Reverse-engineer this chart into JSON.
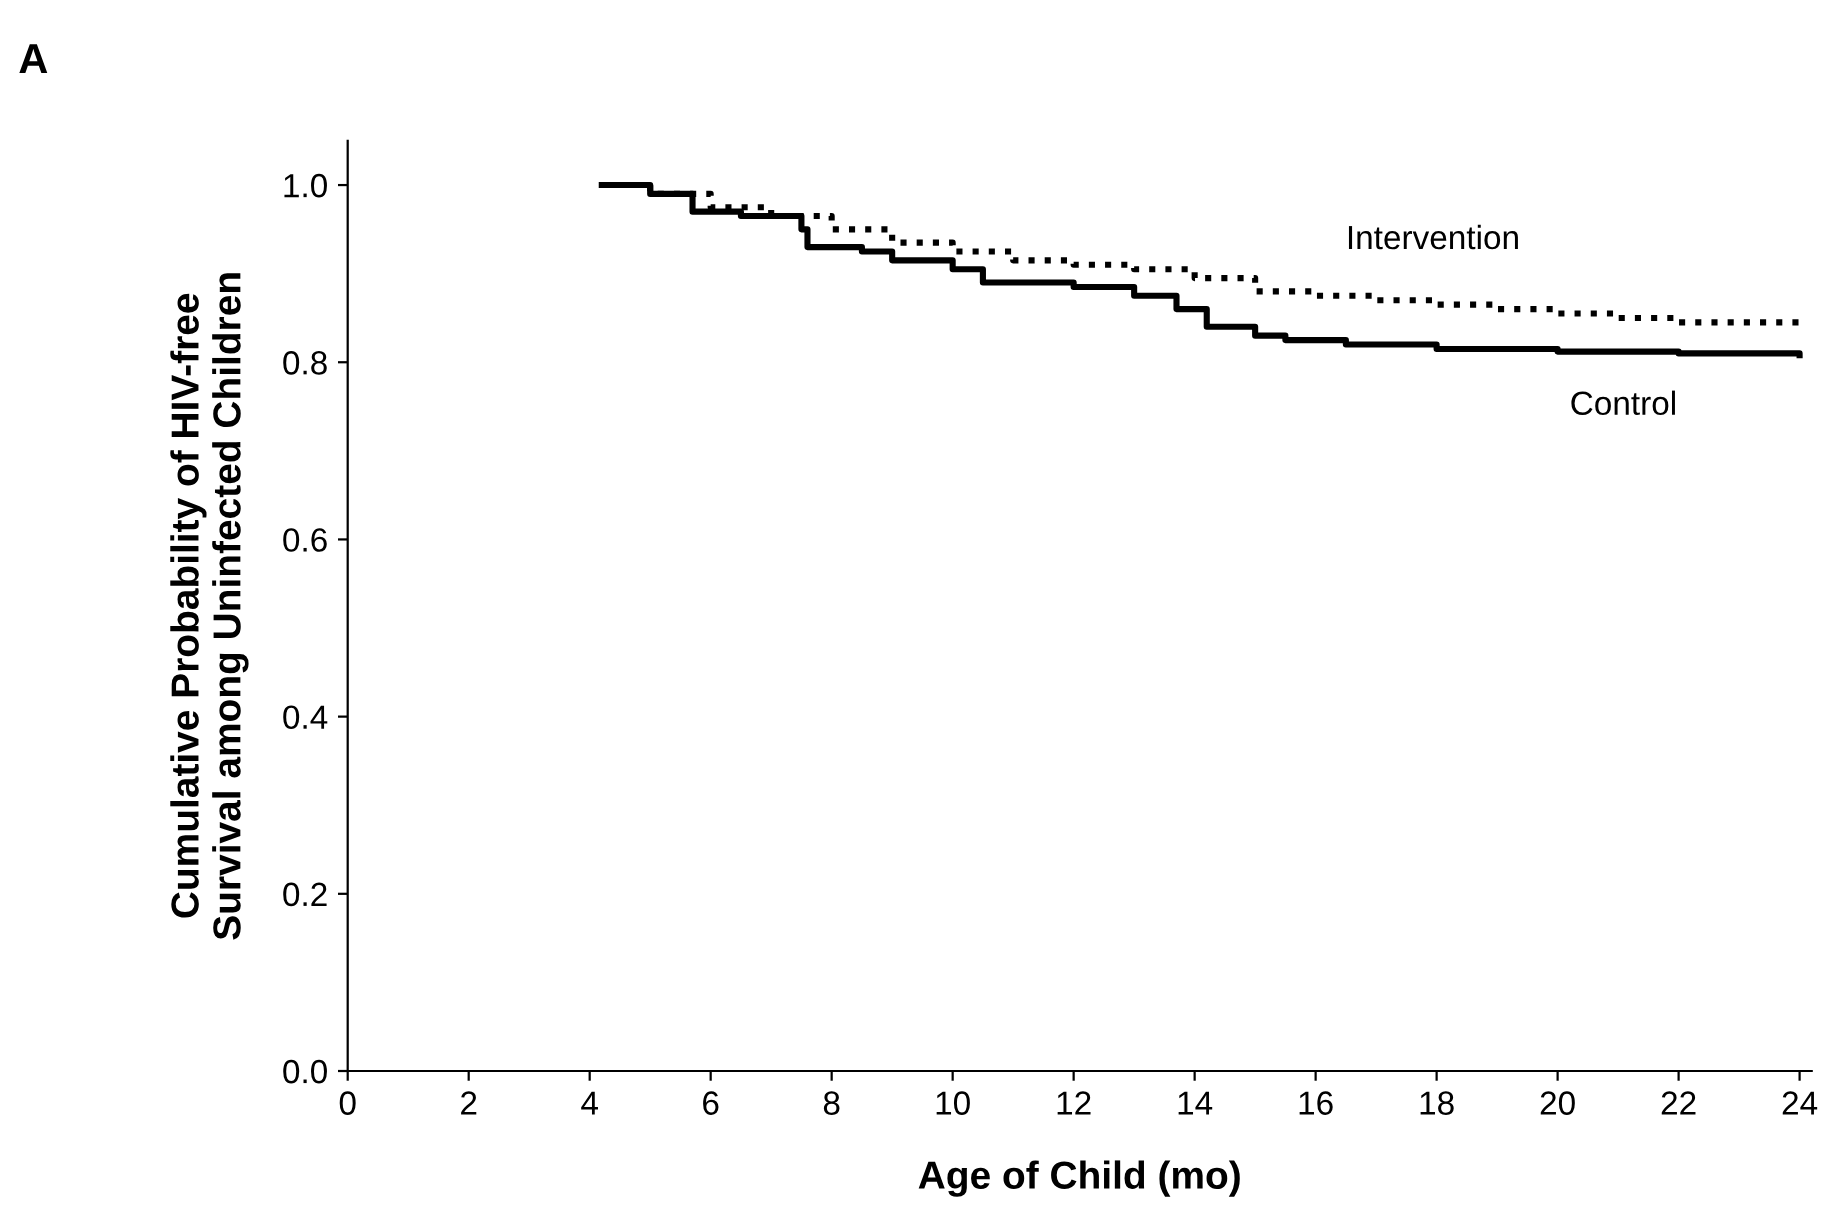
{
  "chart_data": {
    "type": "step",
    "xlabel": "Age of Child (mo)",
    "ylabel": "Cumulative Probability of HIV-free\nSurvival among Uninfected Children",
    "annotations": [
      "A"
    ],
    "xlim": [
      0,
      24.2
    ],
    "ylim": [
      0,
      1.05
    ],
    "xticks": [
      0,
      2,
      4,
      6,
      8,
      10,
      12,
      14,
      16,
      18,
      20,
      22,
      24
    ],
    "yticks": [
      {
        "value": 0,
        "label": "0.0"
      },
      0.2,
      0.4,
      0.6,
      0.8,
      {
        "value": 1,
        "label": "1.0"
      }
    ],
    "grid": false,
    "legend": false,
    "series": [
      {
        "name": "Intervention",
        "color": "#000000",
        "line_style": "dotted",
        "x": [
          4.2,
          5,
          6,
          7,
          8,
          9,
          10,
          11,
          12,
          13,
          14,
          15,
          16,
          17,
          18,
          19,
          20,
          21,
          22,
          24
        ],
        "values": [
          1.0,
          0.99,
          0.975,
          0.965,
          0.95,
          0.935,
          0.925,
          0.915,
          0.91,
          0.905,
          0.895,
          0.88,
          0.875,
          0.87,
          0.865,
          0.86,
          0.855,
          0.85,
          0.845,
          0.84
        ]
      },
      {
        "name": "Control",
        "color": "#000000",
        "line_style": "solid",
        "x": [
          4.2,
          5,
          5.7,
          6.5,
          7.5,
          7.6,
          8.5,
          9,
          10,
          10.5,
          12,
          13,
          13.7,
          14.2,
          15,
          15.5,
          16.5,
          18,
          20,
          22,
          24
        ],
        "values": [
          1.0,
          0.99,
          0.97,
          0.965,
          0.95,
          0.93,
          0.925,
          0.915,
          0.905,
          0.89,
          0.885,
          0.875,
          0.86,
          0.84,
          0.83,
          0.825,
          0.82,
          0.815,
          0.812,
          0.81,
          0.808
        ]
      }
    ]
  }
}
